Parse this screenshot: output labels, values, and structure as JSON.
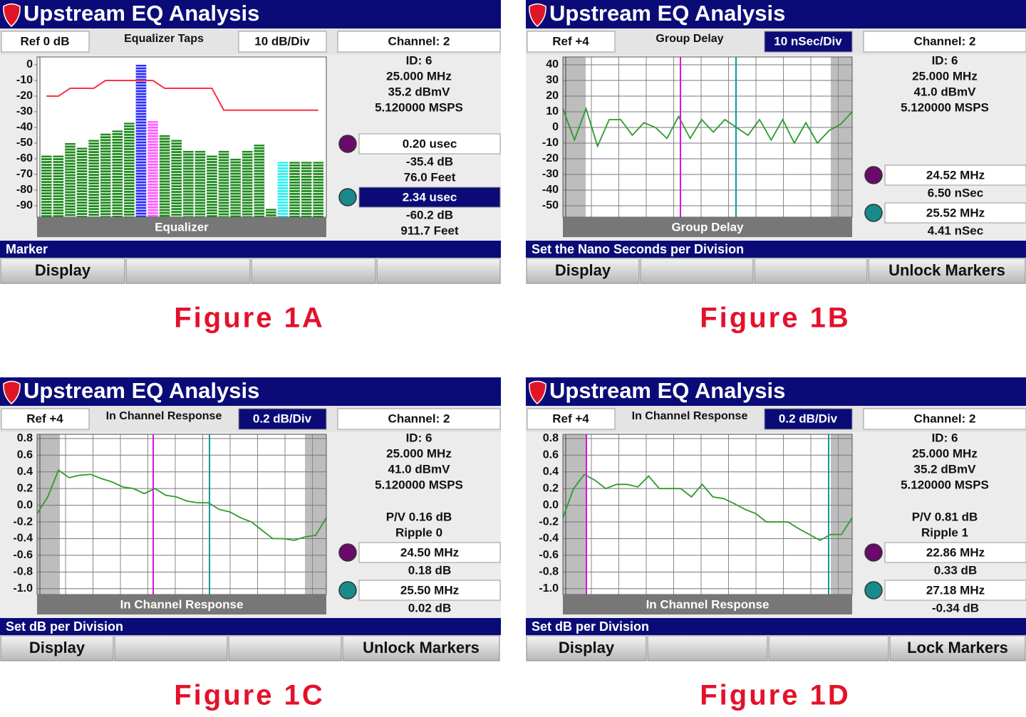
{
  "panels": [
    {
      "title": "Upstream EQ Analysis",
      "ref": "Ref 0 dB",
      "mode": "Equalizer Taps",
      "scale": "10 dB/Div",
      "scale_selected": false,
      "channel": "Channel: 2",
      "info": [
        "ID: 6",
        "25.000 MHz",
        "35.2 dBmV",
        "5.120000 MSPS"
      ],
      "stats": null,
      "markers": [
        {
          "value": "0.20 usec",
          "selected": false,
          "readings": [
            "-35.4 dB",
            "76.0 Feet"
          ]
        },
        {
          "value": "2.34 usec",
          "selected": true,
          "readings": [
            "-60.2 dB",
            "911.7 Feet"
          ]
        }
      ],
      "plot": {
        "type": "taps",
        "label": "Equalizer",
        "ylim": [
          -97.3,
          5
        ],
        "yticks": [
          0,
          -10,
          -20,
          -30,
          -40,
          -50,
          -60,
          -70,
          -80,
          -90
        ],
        "values": [
          -58,
          -58,
          -50,
          -53,
          -48,
          -44,
          -42,
          -37,
          0,
          -36,
          -45,
          -48,
          -55,
          -55,
          -58,
          -55,
          -60,
          -55,
          -51,
          -92,
          -62,
          -62,
          -62,
          -62
        ],
        "colors": [
          "#1f8a1f",
          "#1f8a1f",
          "#1f8a1f",
          "#1f8a1f",
          "#1f8a1f",
          "#1f8a1f",
          "#1f8a1f",
          "#1f8a1f",
          "#2a2aff",
          "#ff5cff",
          "#1f8a1f",
          "#1f8a1f",
          "#1f8a1f",
          "#1f8a1f",
          "#1f8a1f",
          "#1f8a1f",
          "#1f8a1f",
          "#1f8a1f",
          "#1f8a1f",
          "#1f8a1f",
          "#2ef0f0",
          "#1f8a1f",
          "#1f8a1f",
          "#1f8a1f"
        ],
        "limit": [
          -20,
          -20,
          -15,
          -15,
          -15,
          -10,
          -10,
          -10,
          -10,
          -10,
          -15,
          -15,
          -15,
          -15,
          -15,
          -29,
          -29,
          -29,
          -29,
          -29,
          -29,
          -29,
          -29,
          -29
        ],
        "limit_color": "#ff3040",
        "grid": false
      },
      "status": "Marker",
      "softkeys": [
        "Display",
        null,
        null,
        null
      ],
      "caption": "Figure 1A"
    },
    {
      "title": "Upstream EQ Analysis",
      "ref": "Ref +4",
      "mode": "Group Delay",
      "scale": "10 nSec/Div",
      "scale_selected": true,
      "channel": "Channel: 2",
      "info": [
        "ID: 6",
        "25.000 MHz",
        "41.0 dBmV",
        "5.120000 MSPS"
      ],
      "stats": null,
      "markers": [
        {
          "value": "24.52 MHz",
          "selected": false,
          "readings": [
            "6.50 nSec"
          ]
        },
        {
          "value": "25.52 MHz",
          "selected": false,
          "readings": [
            "4.41 nSec"
          ]
        }
      ],
      "plot": {
        "type": "line",
        "label": "Group Delay",
        "ylim": [
          -57.3,
          45
        ],
        "yticks": [
          40,
          30,
          20,
          10,
          0,
          -10,
          -20,
          -30,
          -40,
          -50
        ],
        "values": [
          12,
          -8,
          12,
          -12,
          5,
          5,
          -5,
          3,
          0,
          -7,
          7,
          -7,
          5,
          -3,
          5,
          0,
          -5,
          5,
          -8,
          5,
          -10,
          3,
          -10,
          -2,
          2,
          10
        ],
        "color": "#2e9a2e",
        "grid": true
      },
      "status": "Set the Nano Seconds per Division",
      "softkeys": [
        "Display",
        null,
        null,
        "Unlock Markers"
      ],
      "caption": "Figure 1B"
    },
    {
      "title": "Upstream EQ Analysis",
      "ref": "Ref +4",
      "mode": "In Channel Response",
      "scale": "0.2 dB/Div",
      "scale_selected": true,
      "channel": "Channel: 2",
      "info": [
        "ID: 6",
        "25.000 MHz",
        "41.0 dBmV",
        "5.120000 MSPS"
      ],
      "stats": [
        "P/V 0.16 dB",
        "Ripple 0"
      ],
      "markers": [
        {
          "value": "24.50 MHz",
          "selected": false,
          "readings": [
            "0.18 dB"
          ]
        },
        {
          "value": "25.50 MHz",
          "selected": false,
          "readings": [
            "0.02 dB"
          ]
        }
      ],
      "plot": {
        "type": "line",
        "label": "In Channel Response",
        "ylim": [
          -1.07,
          0.85
        ],
        "yticks": [
          0.8,
          0.6,
          0.4,
          0.2,
          {
            "value": 0,
            "label": "0.0"
          },
          -0.2,
          -0.4,
          -0.6,
          -0.8,
          {
            "value": -1,
            "label": "-1.0"
          }
        ],
        "values": [
          -0.1,
          0.1,
          0.42,
          0.33,
          0.36,
          0.37,
          0.32,
          0.28,
          0.22,
          0.2,
          0.14,
          0.2,
          0.12,
          0.1,
          0.05,
          0.03,
          0.03,
          -0.05,
          -0.08,
          -0.15,
          -0.2,
          -0.3,
          -0.4,
          -0.4,
          -0.42,
          -0.38,
          -0.36,
          -0.15
        ],
        "color": "#2e9a2e",
        "grid": true
      },
      "status": "Set dB per Division",
      "softkeys": [
        "Display",
        null,
        null,
        "Unlock Markers"
      ],
      "caption": "Figure 1C"
    },
    {
      "title": "Upstream EQ Analysis",
      "ref": "Ref +4",
      "mode": "In Channel Response",
      "scale": "0.2 dB/Div",
      "scale_selected": true,
      "channel": "Channel: 2",
      "info": [
        "ID: 6",
        "25.000 MHz",
        "35.2 dBmV",
        "5.120000 MSPS"
      ],
      "stats": [
        "P/V 0.81 dB",
        "Ripple 1"
      ],
      "markers": [
        {
          "value": "22.86 MHz",
          "selected": false,
          "readings": [
            "0.33 dB"
          ]
        },
        {
          "value": "27.18 MHz",
          "selected": false,
          "readings": [
            "-0.34 dB"
          ]
        }
      ],
      "plot": {
        "type": "line",
        "label": "In Channel Response",
        "ylim": [
          -1.07,
          0.85
        ],
        "yticks": [
          0.8,
          0.6,
          0.4,
          0.2,
          {
            "value": 0,
            "label": "0.0"
          },
          -0.2,
          -0.4,
          -0.6,
          -0.8,
          {
            "value": -1,
            "label": "-1.0"
          }
        ],
        "values": [
          -0.15,
          0.2,
          0.37,
          0.3,
          0.2,
          0.25,
          0.25,
          0.22,
          0.35,
          0.2,
          0.2,
          0.2,
          0.1,
          0.25,
          0.1,
          0.08,
          0.02,
          -0.05,
          -0.1,
          -0.2,
          -0.2,
          -0.2,
          -0.28,
          -0.35,
          -0.42,
          -0.35,
          -0.35,
          -0.15
        ],
        "color": "#2e9a2e",
        "grid": true
      },
      "status": "Set dB per Division",
      "softkeys": [
        "Display",
        null,
        null,
        "Lock Markers"
      ],
      "caption": "Figure 1D"
    }
  ]
}
